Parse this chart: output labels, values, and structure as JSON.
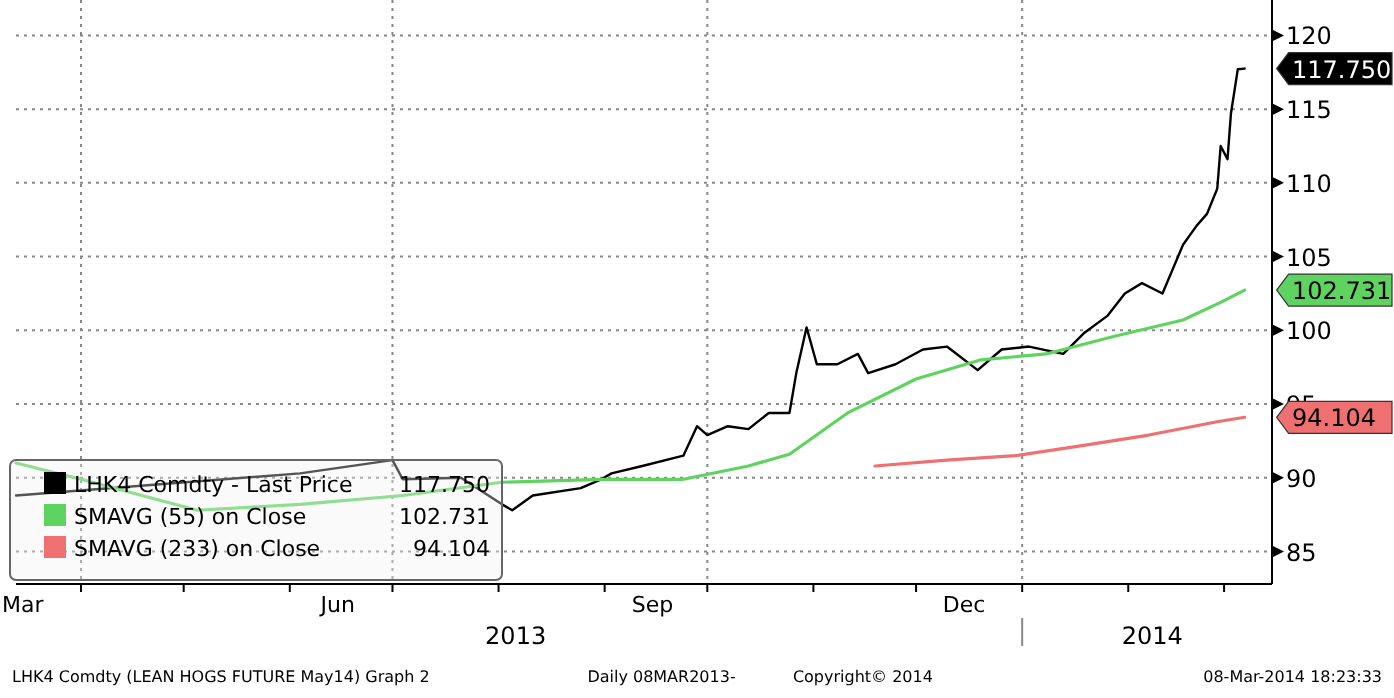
{
  "chart_data": {
    "type": "line",
    "xlim": [
      "2013-03-13",
      "2014-03-15"
    ],
    "ylim": [
      82.8,
      122.4
    ],
    "yticks": [
      85,
      90,
      95,
      100,
      105,
      110,
      115,
      120
    ],
    "xticks": [
      {
        "value": "2013-03-15",
        "label": "Mar"
      },
      {
        "value": "2013-04-01",
        "label": null
      },
      {
        "value": "2013-05-01",
        "label": null
      },
      {
        "value": "2013-06-01",
        "label": null
      },
      {
        "value": "2013-06-15",
        "label": "Jun"
      },
      {
        "value": "2013-07-01",
        "label": null
      },
      {
        "value": "2013-08-01",
        "label": null
      },
      {
        "value": "2013-09-01",
        "label": null
      },
      {
        "value": "2013-09-15",
        "label": "Sep"
      },
      {
        "value": "2013-10-01",
        "label": null
      },
      {
        "value": "2013-11-01",
        "label": null
      },
      {
        "value": "2013-12-01",
        "label": null
      },
      {
        "value": "2013-12-15",
        "label": "Dec"
      },
      {
        "value": "2014-01-01",
        "label": null
      },
      {
        "value": "2014-02-01",
        "label": null
      },
      {
        "value": "2014-03-01",
        "label": null
      }
    ],
    "x2lim": [
      "2013-03-13",
      "2014-03-15"
    ],
    "x2ticks": [
      {
        "value": "2013-08-06",
        "label": "2013"
      },
      {
        "value": "2014-01-01",
        "label": null
      },
      {
        "value": "2014-02-08",
        "label": "2014"
      }
    ],
    "grid": true,
    "legend": "bottom left",
    "line_style": "solid",
    "marker": "none",
    "series": [
      {
        "name": "LHK4 Comdty - Last Price",
        "color": "#000000",
        "x": [
          "2013-03-13",
          "2013-06-04",
          "2013-07-01",
          "2013-07-04",
          "2013-07-21",
          "2013-08-02",
          "2013-08-05",
          "2013-08-11",
          "2013-08-25",
          "2013-08-31",
          "2013-09-03",
          "2013-09-12",
          "2013-09-24",
          "2013-09-28",
          "2013-10-01",
          "2013-10-07",
          "2013-10-13",
          "2013-10-19",
          "2013-10-25",
          "2013-10-27",
          "2013-10-30",
          "2013-11-02",
          "2013-11-08",
          "2013-11-14",
          "2013-11-17",
          "2013-11-25",
          "2013-12-03",
          "2013-12-10",
          "2013-12-19",
          "2013-12-26",
          "2014-01-03",
          "2014-01-13",
          "2014-01-19",
          "2014-01-26",
          "2014-01-31",
          "2014-02-05",
          "2014-02-11",
          "2014-02-17",
          "2014-02-21",
          "2014-02-24",
          "2014-02-27",
          "2014-02-28",
          "2014-03-02",
          "2014-03-03",
          "2014-03-05",
          "2014-03-07"
        ],
        "values": [
          88.8,
          90.3,
          91.2,
          89.9,
          90,
          88.2,
          87.8,
          88.8,
          89.3,
          89.9,
          90.3,
          90.8,
          91.5,
          93.5,
          92.9,
          93.5,
          93.3,
          94.4,
          94.4,
          97.1,
          100.2,
          97.7,
          97.7,
          98.4,
          97.1,
          97.7,
          98.7,
          98.9,
          97.3,
          98.7,
          98.9,
          98.4,
          99.8,
          101,
          102.5,
          103.2,
          102.5,
          105.8,
          107.1,
          107.9,
          109.6,
          112.5,
          111.6,
          114.7,
          117.7,
          117.75
        ]
      },
      {
        "name": "SMAVG (55) on Close",
        "color": "#5fd35f",
        "x": [
          "2013-03-13",
          "2013-04-01",
          "2013-05-05",
          "2013-06-04",
          "2013-07-04",
          "2013-08-02",
          "2013-08-31",
          "2013-09-24",
          "2013-10-13",
          "2013-10-25",
          "2013-11-11",
          "2013-12-01",
          "2013-12-20",
          "2014-01-08",
          "2014-01-28",
          "2014-02-17",
          "2014-02-28",
          "2014-03-07"
        ],
        "values": [
          91,
          89.9,
          87.8,
          88.2,
          88.8,
          89.7,
          89.9,
          89.9,
          90.8,
          91.6,
          94.4,
          96.7,
          98,
          98.4,
          99.6,
          100.7,
          101.9,
          102.731
        ]
      },
      {
        "name": "SMAVG (233) on Close",
        "color": "#ee7070",
        "x": [
          "2013-11-19",
          "2013-12-10",
          "2013-12-30",
          "2014-01-19",
          "2014-02-07",
          "2014-02-27",
          "2014-03-07"
        ],
        "values": [
          90.8,
          91.2,
          91.5,
          92.2,
          92.9,
          93.8,
          94.104
        ]
      }
    ],
    "annotations": [
      {
        "text": "117.750",
        "x": "2014-03-07",
        "y": 117.75
      },
      {
        "text": "102.731",
        "x": "2014-03-07",
        "y": 102.731
      },
      {
        "text": "94.104",
        "x": "2014-03-07",
        "y": 94.104
      },
      "LHK4 Comdty (LEAN HOGS FUTURE  May14) Graph 2",
      "Daily 08MAR2013-",
      "Copyright© 2014",
      "08-Mar-2014 18:23:33"
    ]
  }
}
